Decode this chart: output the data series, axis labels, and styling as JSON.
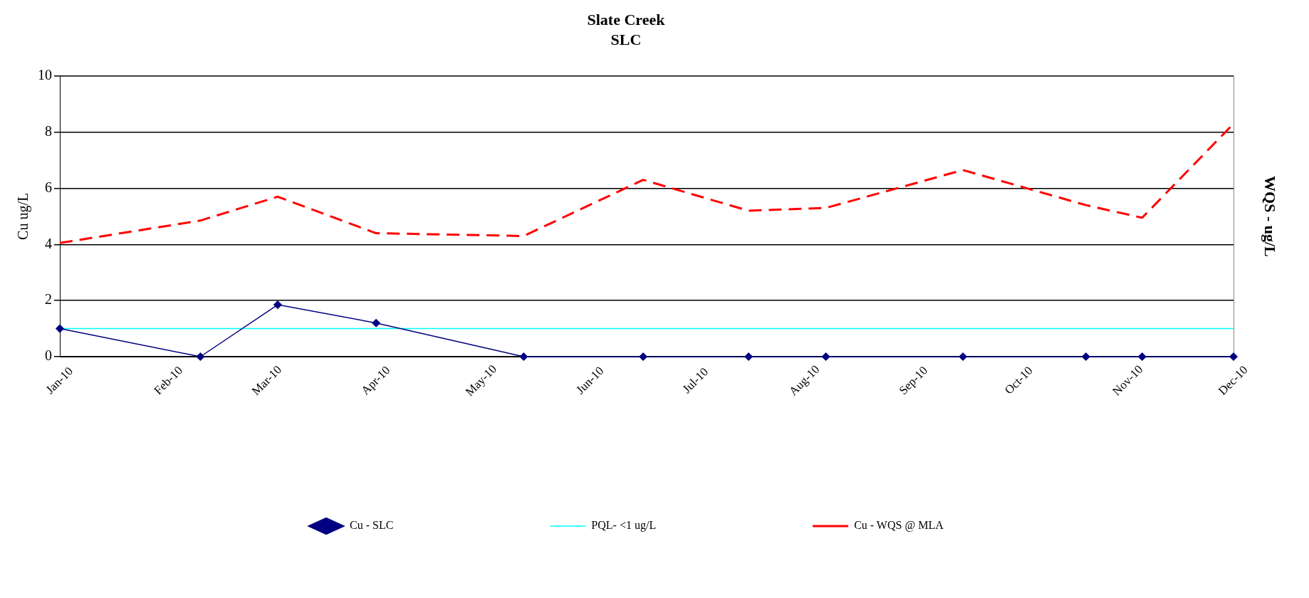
{
  "chart_data": {
    "type": "line",
    "title": "Slate Creek",
    "subtitle": "SLC",
    "ylabel": "Cu ug/L",
    "y2label": "WQS - ug/L",
    "x": [
      "2010-01-01",
      "2010-02-10",
      "2010-03-04",
      "2010-04-01",
      "2010-05-13",
      "2010-06-16",
      "2010-07-16",
      "2010-08-07",
      "2010-09-15",
      "2010-10-20",
      "2010-11-05",
      "2010-12-01"
    ],
    "series": [
      {
        "name": "Cu - SLC",
        "color": "#000080",
        "marker": "diamond",
        "line_style": "solid",
        "values": [
          1.0,
          0,
          1.85,
          1.2,
          0,
          0,
          0,
          0,
          0,
          0,
          0,
          0
        ]
      },
      {
        "name": "PQL- <1 ug/L",
        "color": "#00ffff",
        "marker": "none",
        "line_style": "solid",
        "x": [
          "2010-01-01",
          "2010-12-01"
        ],
        "values": [
          1,
          1
        ]
      },
      {
        "name": "Cu - WQS @ MLA",
        "color": "#ff0000",
        "marker": "none",
        "line_style": "dashed",
        "values": [
          4.05,
          4.85,
          5.7,
          4.4,
          4.3,
          6.3,
          5.2,
          5.3,
          6.65,
          5.4,
          4.95,
          8.3
        ]
      }
    ],
    "xlim": [
      "2010-01-01",
      "2010-12-01"
    ],
    "xticks": [
      {
        "value": "2010-01-01",
        "label": "Jan-10"
      },
      {
        "value": "2010-02-01",
        "label": "Feb-10"
      },
      {
        "value": "2010-03-01",
        "label": "Mar-10"
      },
      {
        "value": "2010-04-01",
        "label": "Apr-10"
      },
      {
        "value": "2010-05-01",
        "label": "May-10"
      },
      {
        "value": "2010-06-01",
        "label": "Jun-10"
      },
      {
        "value": "2010-07-01",
        "label": "Jul-10"
      },
      {
        "value": "2010-08-01",
        "label": "Aug-10"
      },
      {
        "value": "2010-09-01",
        "label": "Sep-10"
      },
      {
        "value": "2010-10-01",
        "label": "Oct-10"
      },
      {
        "value": "2010-11-01",
        "label": "Nov-10"
      },
      {
        "value": "2010-12-01",
        "label": "Dec-10"
      }
    ],
    "ylim": [
      0,
      10
    ],
    "yticks": [
      0,
      2,
      4,
      6,
      8,
      10
    ],
    "grid": "y",
    "legend": "bottom"
  }
}
